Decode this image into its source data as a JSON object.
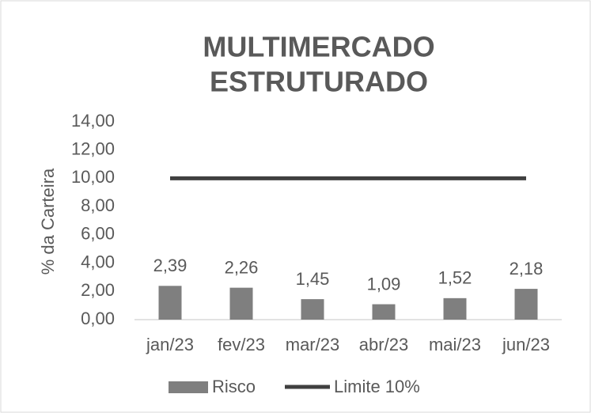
{
  "chart_data": {
    "type": "bar",
    "title": [
      "MULTIMERCADO",
      "ESTRUTURADO"
    ],
    "y_label": "% da Carteira",
    "categories": [
      "jan/23",
      "fev/23",
      "mar/23",
      "abr/23",
      "mai/23",
      "jun/23"
    ],
    "series": [
      {
        "name": "Risco",
        "type": "bar",
        "color": "#7f7f7f",
        "values": [
          2.39,
          2.26,
          1.45,
          1.09,
          1.52,
          2.18
        ],
        "value_labels": [
          "2,39",
          "2,26",
          "1,45",
          "1,09",
          "1,52",
          "2,18"
        ]
      },
      {
        "name": "Limite 10%",
        "type": "line",
        "color": "#404040",
        "values": [
          10,
          10,
          10,
          10,
          10,
          10
        ]
      }
    ],
    "ylim": [
      0,
      14
    ],
    "yticks": [
      {
        "value": 0,
        "label": "0,00"
      },
      {
        "value": 2,
        "label": "2,00"
      },
      {
        "value": 4,
        "label": "4,00"
      },
      {
        "value": 6,
        "label": "6,00"
      },
      {
        "value": 8,
        "label": "8,00"
      },
      {
        "value": 10,
        "label": "10,00"
      },
      {
        "value": 12,
        "label": "12,00"
      },
      {
        "value": 14,
        "label": "14,00"
      }
    ],
    "legend": "bottom"
  }
}
